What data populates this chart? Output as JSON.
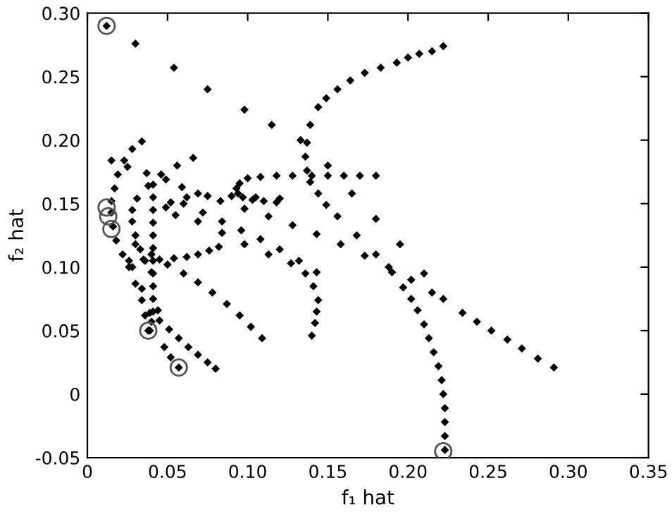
{
  "chart_data": {
    "type": "scatter",
    "xlabel": "f₁ hat",
    "ylabel": "f₂ hat",
    "xlim": [
      0,
      0.35
    ],
    "ylim": [
      -0.05,
      0.3
    ],
    "xticks": [
      0,
      {
        "value": 0.05,
        "label": "0.05"
      },
      {
        "value": 0.1,
        "label": "0.10"
      },
      {
        "value": 0.15,
        "label": "0.15"
      },
      {
        "value": 0.2,
        "label": "0.20"
      },
      {
        "value": 0.25,
        "label": "0.25"
      },
      {
        "value": 0.3,
        "label": "0.30"
      },
      {
        "value": 0.35,
        "label": "0.35"
      }
    ],
    "yticks": [
      {
        "value": -0.05,
        "label": "-0.05"
      },
      0,
      {
        "value": 0.05,
        "label": "0.05"
      },
      {
        "value": 0.1,
        "label": "0.10"
      },
      {
        "value": 0.15,
        "label": "0.15"
      },
      {
        "value": 0.2,
        "label": "0.20"
      },
      {
        "value": 0.25,
        "label": "0.25"
      },
      {
        "value": 0.3,
        "label": "0.30"
      }
    ],
    "grid": false,
    "legend": false,
    "marker": "diamond",
    "series": [
      {
        "color": "#000000",
        "x": [
          0.012,
          0.03,
          0.054,
          0.075,
          0.098,
          0.115,
          0.133,
          0.15,
          0.165,
          0.18,
          0.195,
          0.21,
          0.222,
          0.234,
          0.243,
          0.252,
          0.262,
          0.271,
          0.281,
          0.291
        ],
        "values": [
          0.29,
          0.276,
          0.257,
          0.24,
          0.224,
          0.212,
          0.2,
          0.18,
          0.158,
          0.138,
          0.118,
          0.095,
          0.075,
          0.064,
          0.057,
          0.05,
          0.043,
          0.036,
          0.028,
          0.021
        ]
      },
      {
        "color": "#000000",
        "x": [
          0.222,
          0.215,
          0.207,
          0.2,
          0.193,
          0.183,
          0.173,
          0.164,
          0.156,
          0.149,
          0.144,
          0.139,
          0.137,
          0.136,
          0.137,
          0.139,
          0.144,
          0.149,
          0.156,
          0.168,
          0.18,
          0.19,
          0.197,
          0.202,
          0.206,
          0.21,
          0.213,
          0.216,
          0.219,
          0.221,
          0.222,
          0.223,
          0.223,
          0.223,
          0.223
        ],
        "values": [
          0.274,
          0.27,
          0.268,
          0.265,
          0.261,
          0.257,
          0.253,
          0.247,
          0.24,
          0.233,
          0.226,
          0.212,
          0.198,
          0.187,
          0.176,
          0.167,
          0.158,
          0.149,
          0.14,
          0.125,
          0.11,
          0.096,
          0.084,
          0.075,
          0.066,
          0.055,
          0.044,
          0.033,
          0.022,
          0.011,
          0.0,
          -0.011,
          -0.022,
          -0.033,
          -0.044
        ]
      },
      {
        "color": "#000000",
        "x": [
          0.118,
          0.11,
          0.103,
          0.097,
          0.094,
          0.093,
          0.095,
          0.1,
          0.108,
          0.118,
          0.128,
          0.14,
          0.15,
          0.16,
          0.17,
          0.18
        ],
        "values": [
          0.151,
          0.152,
          0.153,
          0.155,
          0.158,
          0.162,
          0.166,
          0.17,
          0.171,
          0.172,
          0.172,
          0.172,
          0.172,
          0.172,
          0.172,
          0.172
        ]
      },
      {
        "color": "#000000",
        "x": [
          0.12,
          0.105,
          0.09,
          0.075,
          0.062,
          0.052,
          0.049,
          0.055,
          0.069,
          0.084,
          0.098,
          0.113,
          0.127,
          0.136,
          0.141,
          0.144,
          0.143,
          0.142,
          0.14
        ],
        "values": [
          0.154,
          0.155,
          0.156,
          0.156,
          0.155,
          0.151,
          0.147,
          0.141,
          0.136,
          0.127,
          0.118,
          0.11,
          0.103,
          0.095,
          0.085,
          0.074,
          0.065,
          0.056,
          0.046
        ]
      },
      {
        "color": "#000000",
        "x": [
          0.034,
          0.028,
          0.023,
          0.019,
          0.017,
          0.015,
          0.015,
          0.016,
          0.018,
          0.022,
          0.026,
          0.03,
          0.034,
          0.036,
          0.038
        ],
        "values": [
          0.199,
          0.193,
          0.184,
          0.173,
          0.162,
          0.152,
          0.143,
          0.132,
          0.121,
          0.11,
          0.1,
          0.087,
          0.074,
          0.062,
          0.05
        ]
      },
      {
        "color": "#000000",
        "x": [
          0.066,
          0.056,
          0.046,
          0.038,
          0.031,
          0.028,
          0.028,
          0.03,
          0.033,
          0.036,
          0.04,
          0.044,
          0.048,
          0.052,
          0.057
        ],
        "values": [
          0.186,
          0.18,
          0.173,
          0.164,
          0.154,
          0.145,
          0.136,
          0.125,
          0.114,
          0.105,
          0.096,
          0.066,
          0.037,
          0.029,
          0.021
        ]
      },
      {
        "color": "#000000",
        "x": [
          0.041,
          0.041,
          0.041,
          0.041,
          0.041,
          0.041,
          0.041,
          0.041,
          0.041,
          0.041,
          0.041,
          0.04,
          0.039
        ],
        "values": [
          0.165,
          0.155,
          0.145,
          0.135,
          0.125,
          0.115,
          0.105,
          0.095,
          0.085,
          0.075,
          0.065,
          0.057,
          0.05
        ]
      },
      {
        "color": "#000000",
        "x": [
          0.026,
          0.035,
          0.045,
          0.054,
          0.062,
          0.069,
          0.076,
          0.082
        ],
        "values": [
          0.105,
          0.106,
          0.106,
          0.107,
          0.108,
          0.11,
          0.113,
          0.116
        ]
      },
      {
        "color": "#000000",
        "x": [
          0.015,
          0.025,
          0.037,
          0.049,
          0.059,
          0.069,
          0.083,
          0.098,
          0.113,
          0.128,
          0.143,
          0.158,
          0.173,
          0.188,
          0.202,
          0.215
        ],
        "values": [
          0.184,
          0.179,
          0.174,
          0.169,
          0.163,
          0.158,
          0.152,
          0.146,
          0.14,
          0.133,
          0.126,
          0.118,
          0.109,
          0.1,
          0.09,
          0.08
        ]
      },
      {
        "color": "#000000",
        "x": [
          0.03,
          0.04,
          0.05,
          0.06,
          0.069,
          0.078,
          0.087,
          0.095,
          0.102,
          0.109
        ],
        "values": [
          0.118,
          0.11,
          0.102,
          0.095,
          0.088,
          0.08,
          0.071,
          0.062,
          0.053,
          0.044
        ]
      },
      {
        "color": "#000000",
        "x": [
          0.028,
          0.034,
          0.039,
          0.045,
          0.051,
          0.057,
          0.063,
          0.069,
          0.075,
          0.08
        ],
        "values": [
          0.1,
          0.083,
          0.064,
          0.058,
          0.051,
          0.044,
          0.037,
          0.031,
          0.025,
          0.02
        ]
      },
      {
        "color": "#000000",
        "x": [
          0.06,
          0.072,
          0.084,
          0.096,
          0.108,
          0.12,
          0.132,
          0.143
        ],
        "values": [
          0.15,
          0.143,
          0.136,
          0.129,
          0.122,
          0.114,
          0.105,
          0.096
        ]
      },
      {
        "color": "#555555",
        "marker": "circle",
        "x": [
          0.012,
          0.012,
          0.013,
          0.015,
          0.038,
          0.057,
          0.222
        ],
        "values": [
          0.29,
          0.147,
          0.14,
          0.13,
          0.05,
          0.021,
          -0.045
        ]
      }
    ]
  }
}
